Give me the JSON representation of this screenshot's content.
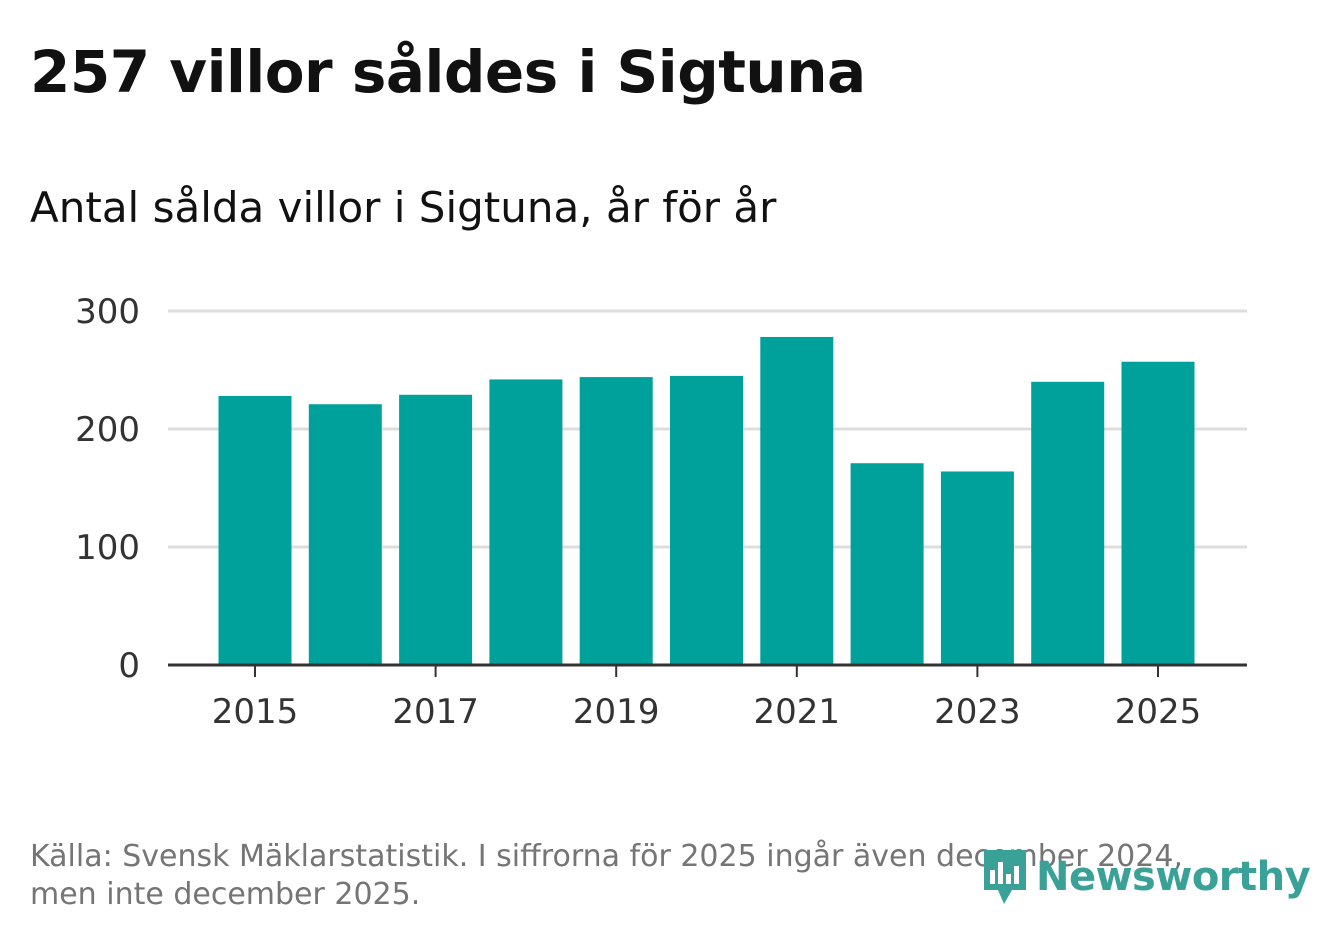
{
  "header": {
    "title": "257 villor såldes i Sigtuna",
    "subtitle": "Antal sålda villor i Sigtuna, år för år"
  },
  "chart_data": {
    "type": "bar",
    "title": "Antal sålda villor i Sigtuna, år för år",
    "xlabel": "",
    "ylabel": "",
    "categories": [
      "2015",
      "2016",
      "2017",
      "2018",
      "2019",
      "2020",
      "2021",
      "2022",
      "2023",
      "2024",
      "2025"
    ],
    "values": [
      228,
      221,
      229,
      242,
      244,
      245,
      278,
      171,
      164,
      240,
      257
    ],
    "ylim": [
      0,
      300
    ],
    "yticks": [
      0,
      100,
      200,
      300
    ],
    "ytick_labels": [
      "0",
      "100",
      "200",
      "300"
    ],
    "xtick_labels": [
      "2015",
      "2017",
      "2019",
      "2021",
      "2023",
      "2025"
    ],
    "xtick_categories": [
      "2015",
      "2017",
      "2019",
      "2021",
      "2023",
      "2025"
    ],
    "grid": true,
    "bar_color": "#00a19a",
    "grid_color": "#dddddd",
    "axis_color": "#333333"
  },
  "footer": {
    "source": "Källa: Svensk Mäklarstatistik. I siffrorna för 2025 ingår även december 2024, men inte december 2025."
  },
  "logo": {
    "text": "Newsworthy",
    "icon": "newsworthy-logo-icon",
    "color": "#3aa198"
  }
}
